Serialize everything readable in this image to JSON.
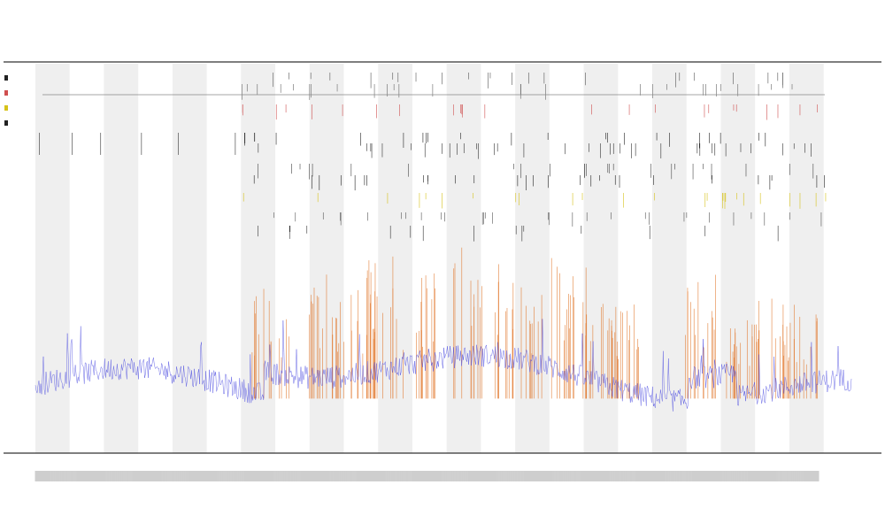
{
  "chart_data": {
    "type": "line",
    "title": "",
    "subtitle_lines": [
      "",
      ""
    ],
    "xlabel": "",
    "ylabel": "",
    "grid": false,
    "shaded_bands": true,
    "legend_position": "top-left",
    "n_points": 920,
    "event_rows": 10,
    "x_tick_count": 900,
    "series": [
      {
        "name": "",
        "color": "#3a3ad8",
        "kind": "baseline-signal",
        "base_level": 0.13
      },
      {
        "name": "",
        "color": "#e07020",
        "kind": "burst-peaks"
      },
      {
        "name": "",
        "color": "#d6c21a",
        "kind": "event-markers"
      },
      {
        "name": "",
        "color": "#222222",
        "kind": "event-markers"
      }
    ],
    "bursts": [
      {
        "center": 0.29,
        "width": 0.025,
        "height": 0.55
      },
      {
        "center": 0.35,
        "width": 0.02,
        "height": 0.62
      },
      {
        "center": 0.39,
        "width": 0.03,
        "height": 0.58
      },
      {
        "center": 0.43,
        "width": 0.025,
        "height": 0.7
      },
      {
        "center": 0.47,
        "width": 0.02,
        "height": 0.6
      },
      {
        "center": 0.54,
        "width": 0.03,
        "height": 0.72
      },
      {
        "center": 0.6,
        "width": 0.025,
        "height": 0.55
      },
      {
        "center": 0.65,
        "width": 0.03,
        "height": 0.68
      },
      {
        "center": 0.69,
        "width": 0.02,
        "height": 0.5
      },
      {
        "center": 0.73,
        "width": 0.02,
        "height": 0.45
      },
      {
        "center": 0.81,
        "width": 0.025,
        "height": 0.6
      },
      {
        "center": 0.86,
        "width": 0.02,
        "height": 0.4
      },
      {
        "center": 0.9,
        "width": 0.02,
        "height": 0.5
      },
      {
        "center": 0.94,
        "width": 0.02,
        "height": 0.45
      }
    ],
    "shaded_band_ranges": [
      [
        0.0,
        0.042
      ],
      [
        0.084,
        0.126
      ],
      [
        0.168,
        0.21
      ],
      [
        0.252,
        0.294
      ],
      [
        0.336,
        0.378
      ],
      [
        0.42,
        0.462
      ],
      [
        0.504,
        0.546
      ],
      [
        0.588,
        0.63
      ],
      [
        0.672,
        0.714
      ],
      [
        0.756,
        0.798
      ],
      [
        0.84,
        0.882
      ],
      [
        0.924,
        0.966
      ]
    ],
    "legend": [
      "",
      "",
      "",
      ""
    ],
    "colors": {
      "band": "#efefef",
      "axis": "#333333",
      "hline": "#888888"
    }
  }
}
